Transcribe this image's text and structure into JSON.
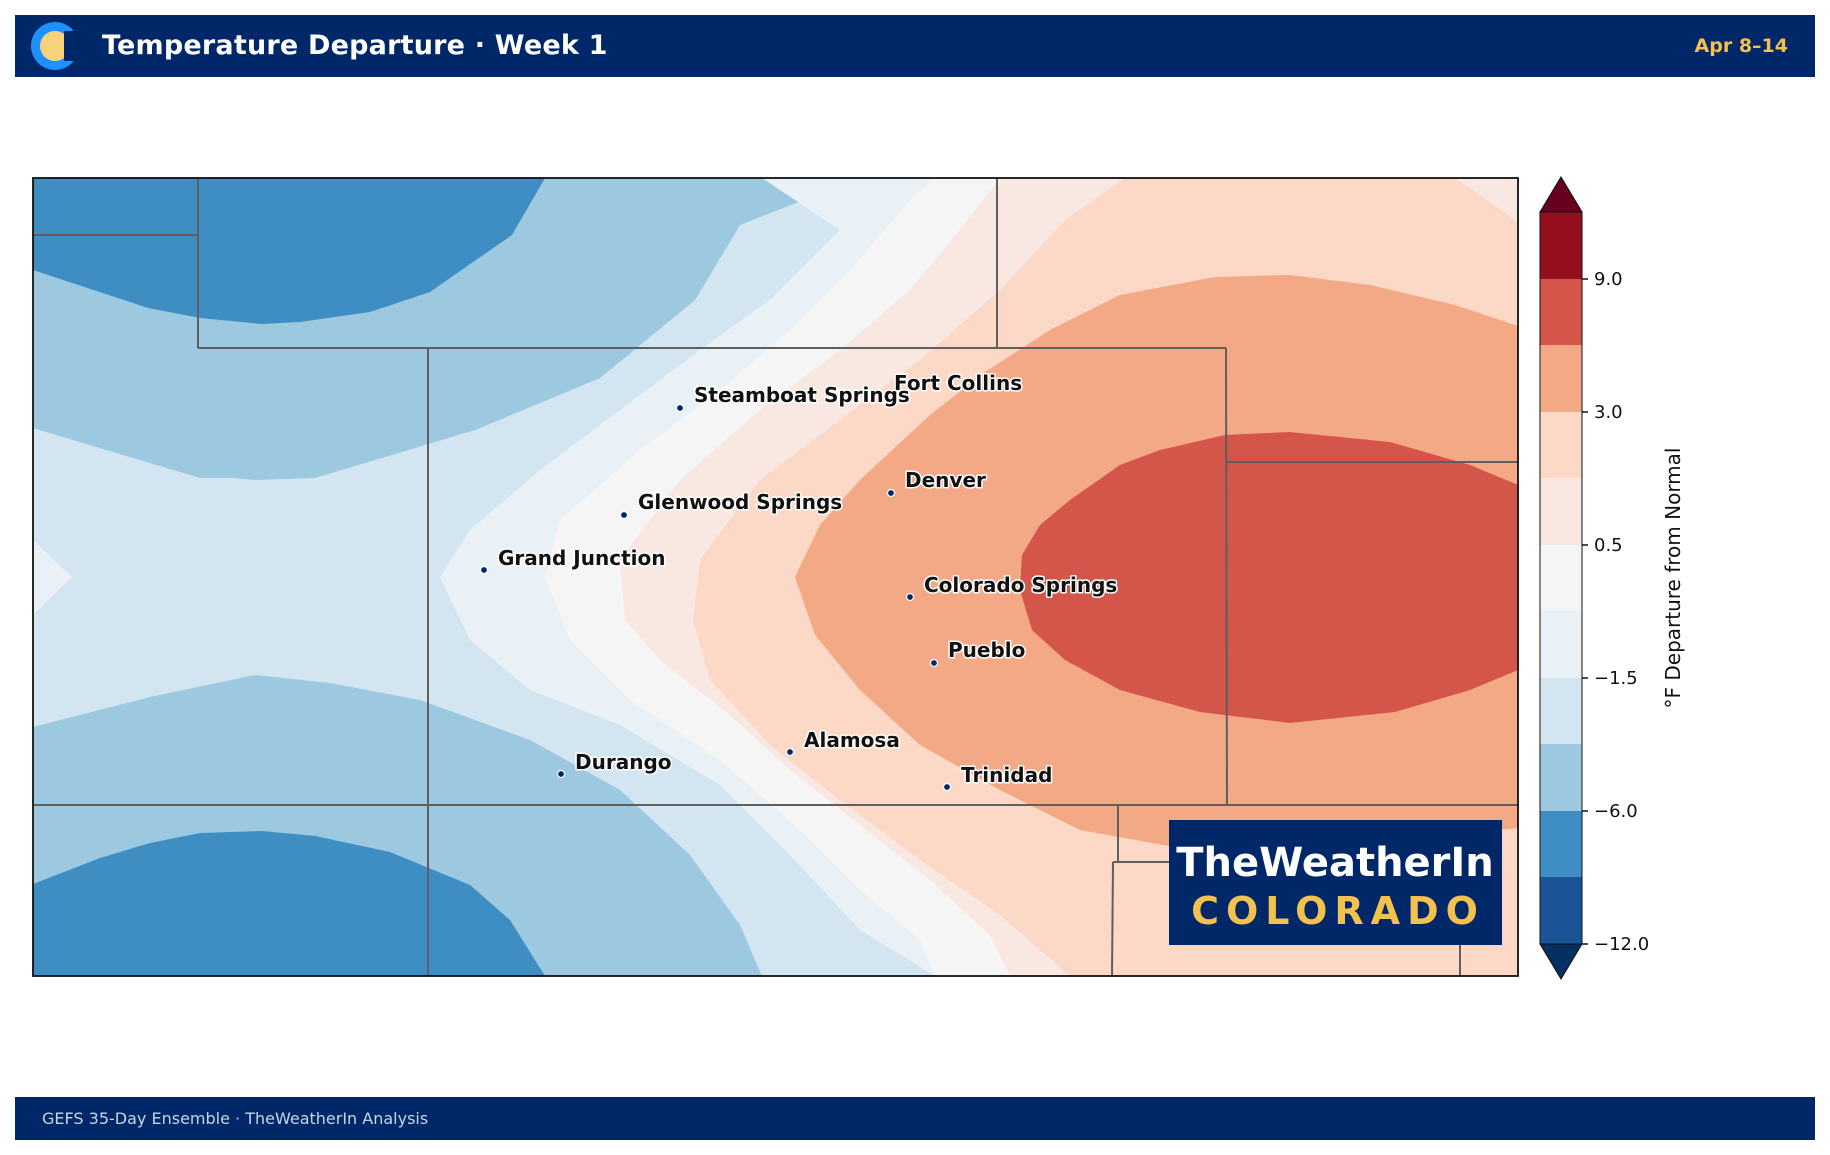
{
  "header": {
    "title": "Temperature Departure · Week 1",
    "date_range": "Apr 8–14"
  },
  "footer": {
    "source": "GEFS 35-Day Ensemble  ·  TheWeatherIn Analysis"
  },
  "colors": {
    "navy": "#002868",
    "gold": "#f2c14e",
    "logo_ring": "#1e90ff"
  },
  "colorbar": {
    "label": "°F Departure from Normal",
    "ticks": [
      "9.0",
      "3.0",
      "0.5",
      "−1.5",
      "−6.0",
      "−12.0"
    ],
    "bins": [
      "#053061",
      "#1a5496",
      "#3e8ec4",
      "#9dc9e0",
      "#d3e5f0",
      "#e9f1f6",
      "#f5f5f5",
      "#f9e7e1",
      "#fcd8c6",
      "#f4a986",
      "#d45549",
      "#94101f",
      "#67001f"
    ]
  },
  "map": {
    "cities": [
      {
        "name": "Steamboat Springs"
      },
      {
        "name": "Fort Collins"
      },
      {
        "name": "Denver"
      },
      {
        "name": "Glenwood Springs"
      },
      {
        "name": "Grand Junction"
      },
      {
        "name": "Colorado Springs"
      },
      {
        "name": "Pueblo"
      },
      {
        "name": "Alamosa"
      },
      {
        "name": "Durango"
      },
      {
        "name": "Trinidad"
      }
    ]
  },
  "brand": {
    "line1": "TheWeatherIn",
    "line2": "COLORADO"
  }
}
